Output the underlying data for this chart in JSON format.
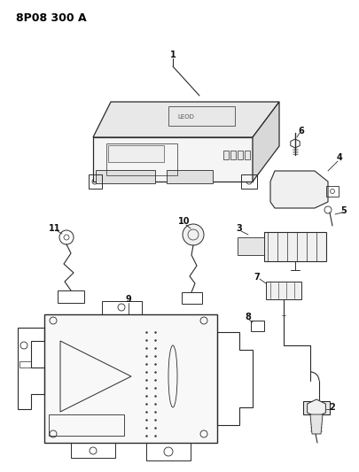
{
  "title": "8P08 300 A",
  "bg_color": "#ffffff",
  "line_color": "#2a2a2a",
  "text_color": "#111111",
  "title_fontsize": 9,
  "label_fontsize": 7,
  "figsize": [
    4.05,
    5.33
  ],
  "dpi": 100
}
